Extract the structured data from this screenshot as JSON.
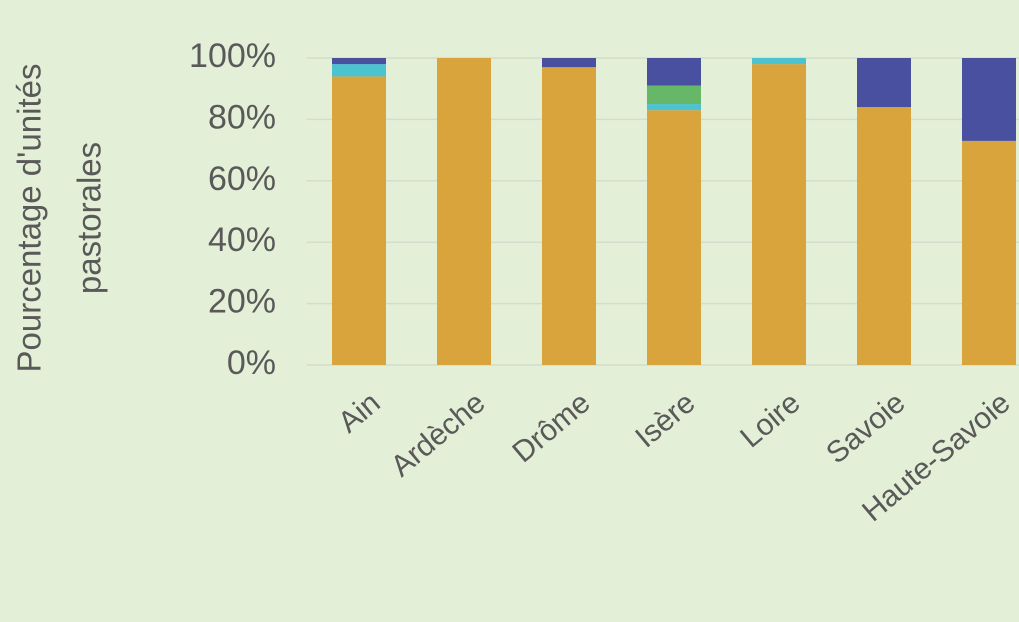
{
  "chart_data": {
    "type": "stacked_bar",
    "y_label": [
      "Pourcentage d'unités",
      "pastorales"
    ],
    "categories": [
      "Ain",
      "Ardèche",
      "Drôme",
      "Isère",
      "Loire",
      "Savoie",
      "Haute-Savoie"
    ],
    "series": [
      {
        "color": "#d9a43c",
        "values": [
          94,
          100,
          97,
          83,
          98,
          84,
          73
        ]
      },
      {
        "color": "#4cc3d0",
        "values": [
          4,
          0,
          0,
          2,
          2,
          0,
          0
        ]
      },
      {
        "color": "#66b868",
        "values": [
          0,
          0,
          0,
          6,
          0,
          0,
          0
        ]
      },
      {
        "color": "#4a50a0",
        "values": [
          2,
          0,
          3,
          9,
          0,
          16,
          27
        ]
      }
    ],
    "ylim": [
      0,
      100
    ],
    "yticks": [
      {
        "value": 0,
        "label": "0%"
      },
      {
        "value": 20,
        "label": "20%"
      },
      {
        "value": 40,
        "label": "40%"
      },
      {
        "value": 60,
        "label": "60%"
      },
      {
        "value": 80,
        "label": "80%"
      },
      {
        "value": 100,
        "label": "100%"
      }
    ],
    "grid": true
  }
}
